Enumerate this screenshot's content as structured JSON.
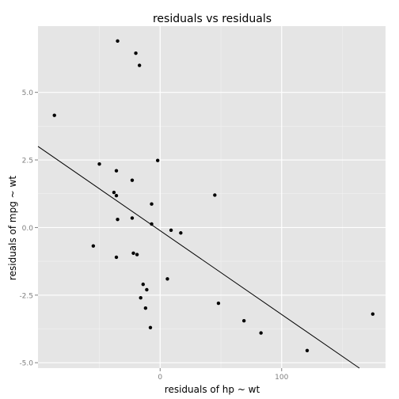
{
  "chart_data": {
    "type": "scatter",
    "title": "residuals vs residuals",
    "xlabel": "residuals of hp ~ wt",
    "ylabel": "residuals of mpg ~ wt",
    "xlim": [
      -100.5,
      185.5
    ],
    "ylim": [
      -5.2,
      7.45
    ],
    "x_ticks": [
      0,
      100
    ],
    "x_tick_labels": [
      "0",
      "100"
    ],
    "y_ticks": [
      -5.0,
      -2.5,
      0.0,
      2.5,
      5.0
    ],
    "y_tick_labels": [
      "-5.0",
      "-2.5",
      "0.0",
      "2.5",
      "5.0"
    ],
    "grid": true,
    "background": "#e5e5e5",
    "grid_major_color": "#ffffff",
    "grid_minor_color": "#f2f2f2",
    "point_color": "#000000",
    "line_color": "#000000",
    "trend_line": {
      "x": [
        -100.5,
        164
      ],
      "y": [
        3.0,
        -5.2
      ]
    },
    "points": [
      {
        "x": -87,
        "y": 4.15
      },
      {
        "x": -50,
        "y": 2.35
      },
      {
        "x": -55,
        "y": -0.68
      },
      {
        "x": -38,
        "y": 1.3
      },
      {
        "x": -36,
        "y": 1.18
      },
      {
        "x": -36,
        "y": 2.1
      },
      {
        "x": -35,
        "y": 6.9
      },
      {
        "x": -35,
        "y": 0.3
      },
      {
        "x": -36,
        "y": -1.1
      },
      {
        "x": -20,
        "y": 6.45
      },
      {
        "x": -17,
        "y": 6.0
      },
      {
        "x": -23,
        "y": 1.75
      },
      {
        "x": -23,
        "y": 0.35
      },
      {
        "x": -22,
        "y": -0.95
      },
      {
        "x": -19,
        "y": -1.0
      },
      {
        "x": -7,
        "y": 0.87
      },
      {
        "x": -7,
        "y": 0.13
      },
      {
        "x": -2,
        "y": 2.48
      },
      {
        "x": 9,
        "y": -0.1
      },
      {
        "x": 17,
        "y": -0.2
      },
      {
        "x": 45,
        "y": 1.2
      },
      {
        "x": -14,
        "y": -2.1
      },
      {
        "x": -11,
        "y": -2.3
      },
      {
        "x": -16,
        "y": -2.6
      },
      {
        "x": -12,
        "y": -2.98
      },
      {
        "x": -8,
        "y": -3.7
      },
      {
        "x": 6,
        "y": -1.9
      },
      {
        "x": 48,
        "y": -2.8
      },
      {
        "x": 69,
        "y": -3.45
      },
      {
        "x": 83,
        "y": -3.9
      },
      {
        "x": 121,
        "y": -4.55
      },
      {
        "x": 175,
        "y": -3.2
      }
    ]
  }
}
